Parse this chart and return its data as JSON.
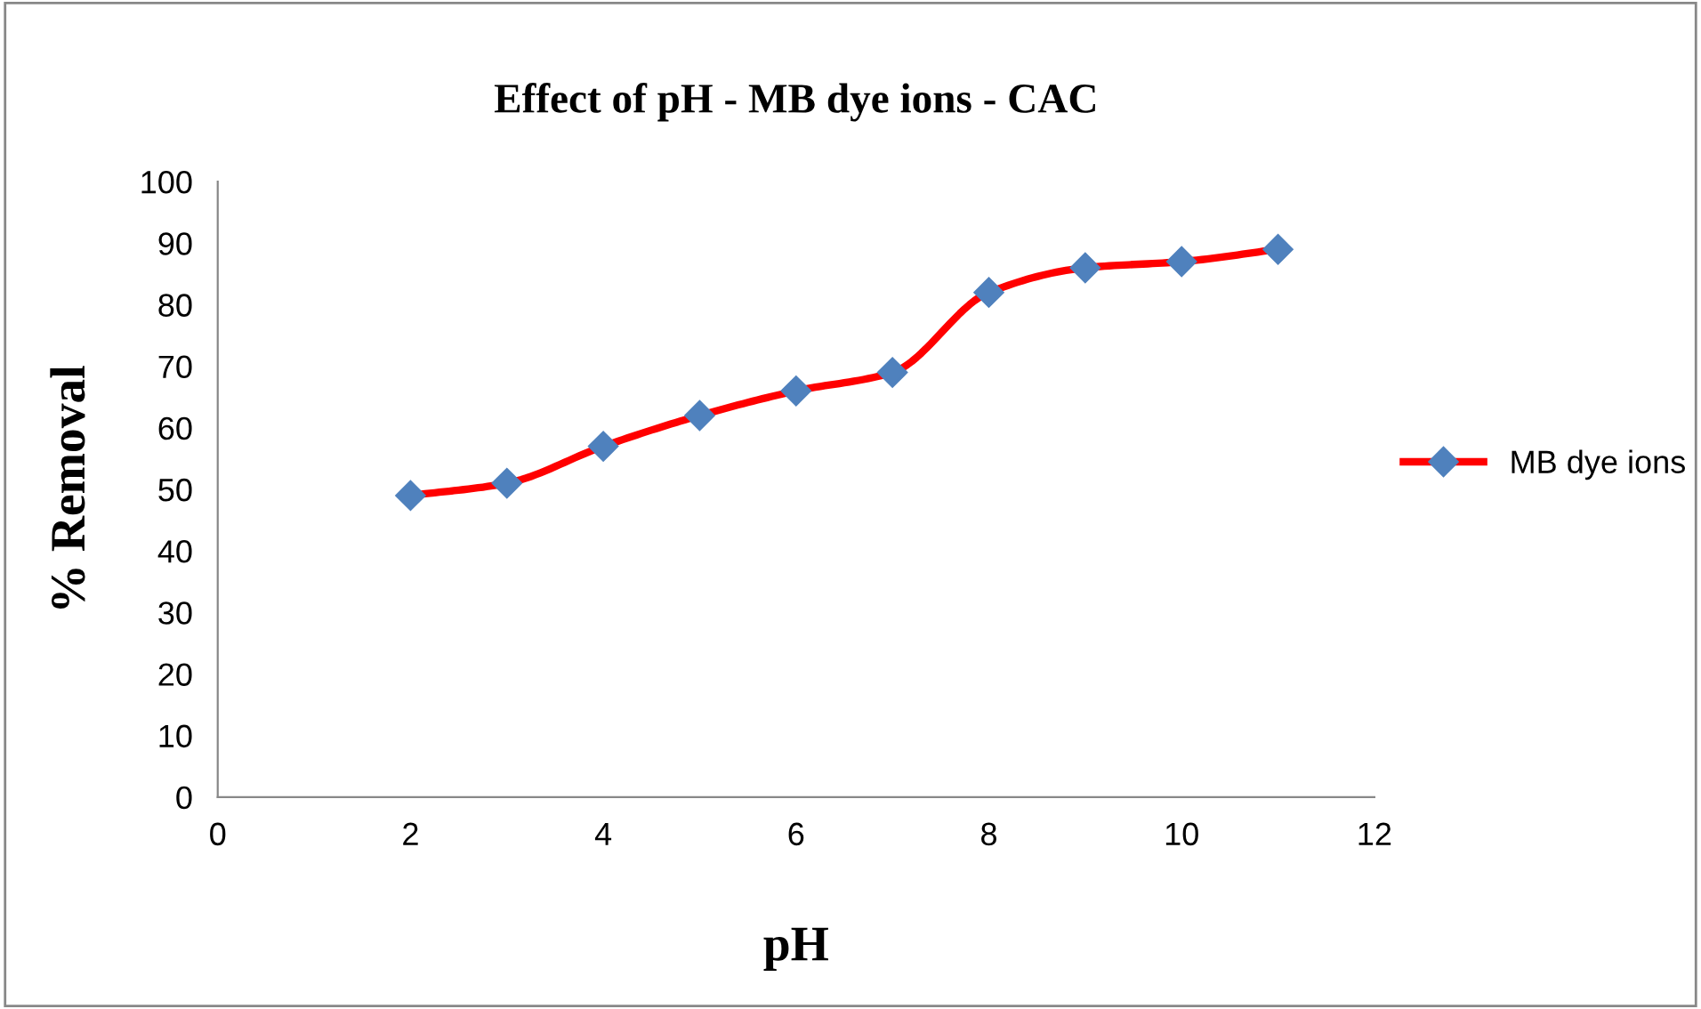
{
  "chart_data": {
    "type": "line",
    "title": "Effect of pH - MB dye ions - CAC",
    "xlabel": "pH",
    "ylabel": "% Removal",
    "x": [
      2,
      3,
      4,
      5,
      6,
      7,
      8,
      9,
      10,
      11
    ],
    "series": [
      {
        "name": "MB dye ions",
        "color": "#ff0000",
        "colors": [
          "#4f81bd",
          "#4f81bd",
          "#4f81bd",
          "#4f81bd",
          "#4f81bd",
          "#4f81bd",
          "#4f81bd",
          "#4f81bd",
          "#4f81bd",
          "#4f81bd"
        ],
        "values": [
          49,
          51,
          57,
          62,
          66,
          69,
          82,
          86,
          87,
          89
        ]
      }
    ],
    "xlim": [
      0,
      12
    ],
    "xticks": [
      0,
      2,
      4,
      6,
      8,
      10,
      12
    ],
    "ylim": [
      0,
      100
    ],
    "yticks": [
      0,
      10,
      20,
      30,
      40,
      50,
      60,
      70,
      80,
      90,
      100
    ],
    "grid": false,
    "legend": "right",
    "marker": "diamond",
    "line_style": "solid"
  }
}
